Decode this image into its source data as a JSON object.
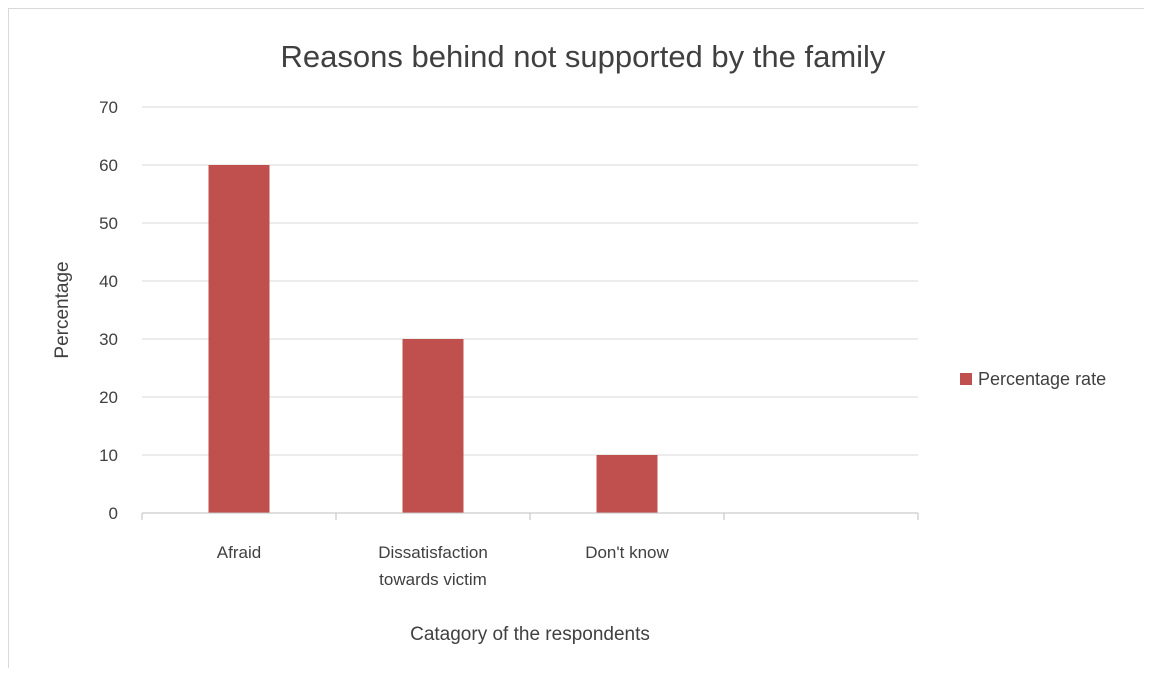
{
  "chart_data": {
    "type": "bar",
    "title": "Reasons behind not supported by the family",
    "xlabel": "Catagory of the respondents",
    "ylabel": "Percentage",
    "categories": [
      [
        "Afraid"
      ],
      [
        "Dissatisfaction",
        "towards victim"
      ],
      [
        "Don't know"
      ],
      [
        ""
      ]
    ],
    "series": [
      {
        "name": "Percentage rate",
        "values": [
          60,
          30,
          10,
          null
        ],
        "color": "#c0504d"
      }
    ],
    "ylim": [
      0,
      70
    ],
    "yticks": [
      0,
      10,
      20,
      30,
      40,
      50,
      60,
      70
    ],
    "grid": true,
    "legend_position": "right"
  }
}
